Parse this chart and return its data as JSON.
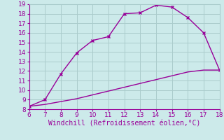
{
  "xlabel": "Windchill (Refroidissement éolien,°C)",
  "xlim": [
    6,
    18
  ],
  "ylim": [
    8,
    19
  ],
  "xticks": [
    6,
    7,
    8,
    9,
    10,
    11,
    12,
    13,
    14,
    15,
    16,
    17,
    18
  ],
  "yticks": [
    8,
    9,
    10,
    11,
    12,
    13,
    14,
    15,
    16,
    17,
    18,
    19
  ],
  "line1_x": [
    6,
    7,
    8,
    9,
    10,
    11,
    12,
    13,
    14,
    15,
    16,
    17,
    18
  ],
  "line1_y": [
    8.3,
    9.0,
    11.7,
    13.9,
    15.2,
    15.6,
    18.0,
    18.1,
    18.9,
    18.7,
    17.6,
    16.0,
    12.1
  ],
  "line2_x": [
    6,
    7,
    8,
    9,
    10,
    11,
    12,
    13,
    14,
    15,
    16,
    17,
    18
  ],
  "line2_y": [
    8.3,
    8.5,
    8.8,
    9.1,
    9.5,
    9.9,
    10.3,
    10.7,
    11.1,
    11.5,
    11.9,
    12.1,
    12.1
  ],
  "line_color": "#990099",
  "bg_color": "#cceaea",
  "grid_color": "#aacccc",
  "tick_color": "#990099",
  "label_color": "#990099",
  "font_size": 6.5,
  "xlabel_fontsize": 7.0
}
